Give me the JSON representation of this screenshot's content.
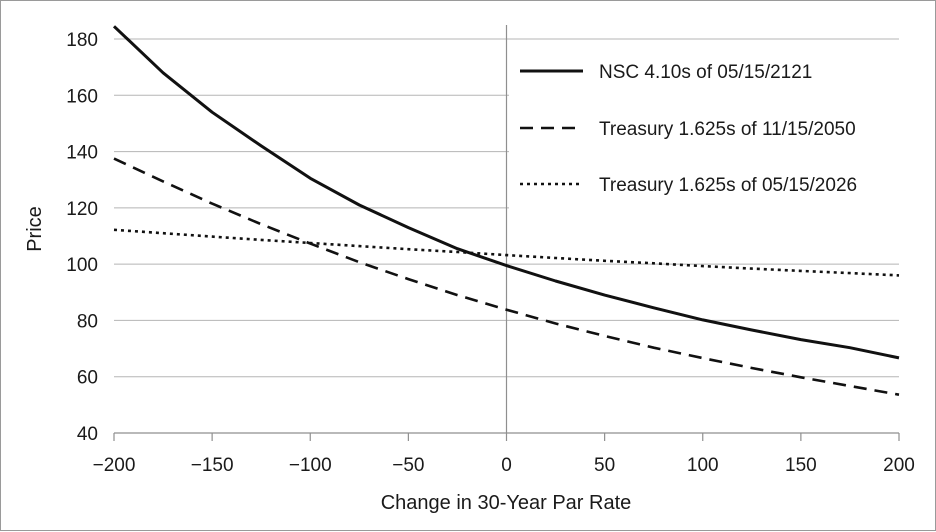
{
  "chart_data": {
    "type": "line",
    "title": "",
    "xlabel": "Change in 30-Year Par Rate",
    "ylabel": "Price",
    "xlim": [
      -200,
      200
    ],
    "ylim": [
      40,
      180
    ],
    "x_ticks": [
      -200,
      -150,
      -100,
      -50,
      0,
      50,
      100,
      150,
      200
    ],
    "x_tick_labels": [
      "−200",
      "−150",
      "−100",
      "−50",
      "0",
      "50",
      "100",
      "150",
      "200"
    ],
    "y_ticks": [
      40,
      60,
      80,
      100,
      120,
      140,
      160,
      180
    ],
    "y_tick_labels": [
      "40",
      "60",
      "80",
      "100",
      "120",
      "140",
      "160",
      "180"
    ],
    "grid": "horizontal",
    "legend_position": "top-right",
    "x": [
      -200,
      -175,
      -150,
      -125,
      -100,
      -75,
      -50,
      -25,
      0,
      25,
      50,
      75,
      100,
      125,
      150,
      175,
      200
    ],
    "series": [
      {
        "name": "NSC 4.10s of 05/15/2121",
        "style": "solid",
        "values": [
          184.5,
          168,
          154,
          142,
          130.5,
          121,
          113,
          105.5,
          99.5,
          94,
          89,
          84.5,
          80.2,
          76.6,
          73.2,
          70.3,
          66.7
        ]
      },
      {
        "name": "Treasury 1.625s of 11/15/2050",
        "style": "dashed",
        "values": [
          137.5,
          129.4,
          121.5,
          114.2,
          107.3,
          100.7,
          94.7,
          89,
          83.8,
          78.9,
          74.5,
          70.3,
          66.6,
          63.1,
          59.8,
          56.7,
          53.6
        ]
      },
      {
        "name": "Treasury 1.625s of 05/15/2026",
        "style": "dotted",
        "values": [
          112.2,
          111,
          109.8,
          108.6,
          107.5,
          106.4,
          105.3,
          104.3,
          103.2,
          102.2,
          101.2,
          100.3,
          99.3,
          98.4,
          97.6,
          96.8,
          96.0
        ]
      }
    ],
    "colors": {
      "line": "#111111",
      "grid": "#b5b5b5",
      "axis": "#8f8f8f"
    }
  }
}
